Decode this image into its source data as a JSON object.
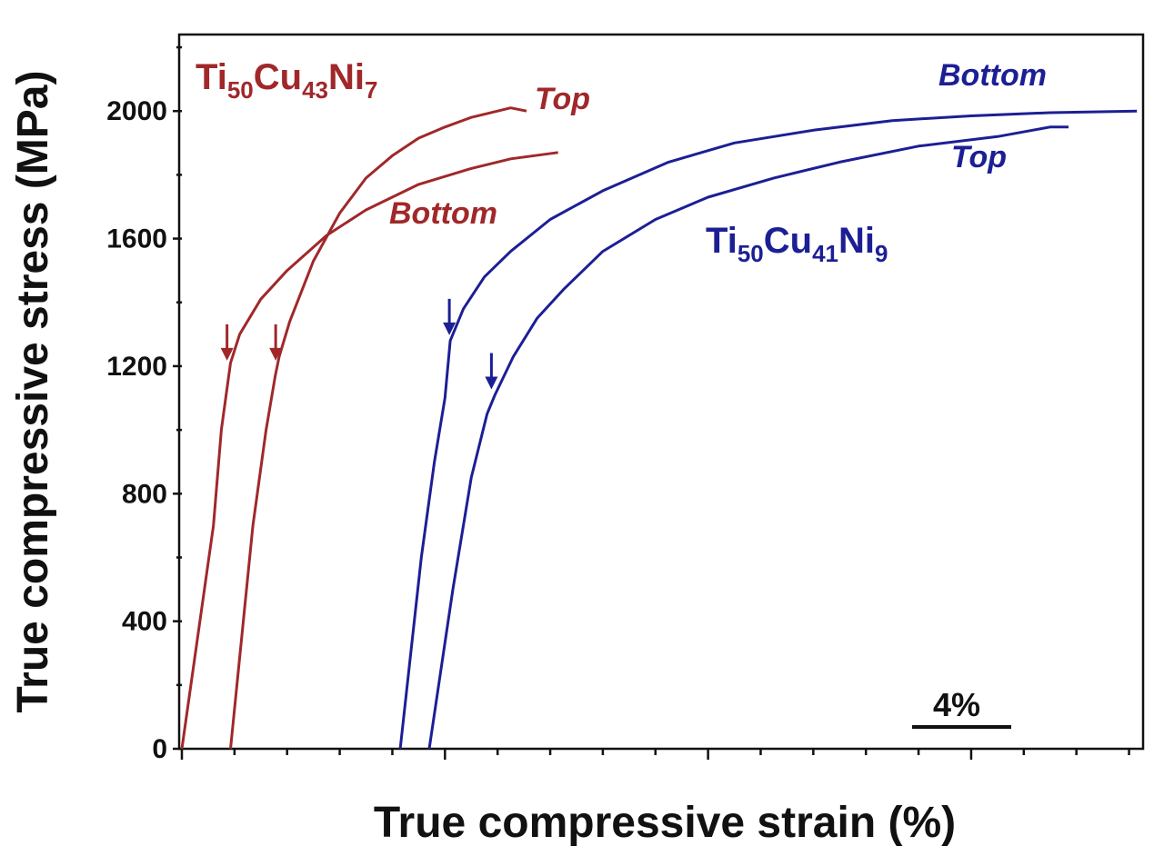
{
  "chart_data": {
    "type": "line",
    "xlabel": "True compressive strain (%)",
    "ylabel": "True compressive stress (MPa)",
    "ylim": [
      0,
      2240
    ],
    "xlim": [
      0,
      36.5
    ],
    "x_ticks_labeled": false,
    "y_ticks": [
      0,
      400,
      800,
      1200,
      1600,
      2000
    ],
    "y_tick_labels": [
      "0",
      "400",
      "800",
      "1200",
      "1600",
      "2000"
    ],
    "grid": false,
    "scale_bar": {
      "label": "4%",
      "value": 4
    },
    "colors": {
      "red": "#a0282a",
      "blue": "#1c1f94",
      "axis": "#111111"
    },
    "groups": [
      {
        "alloy": {
          "base": "Ti",
          "s1": "50",
          "el2": "Cu",
          "s2": "43",
          "el3": "Ni",
          "s3": "7"
        },
        "color": "#a0282a",
        "curves": [
          {
            "name": "Bottom",
            "x": [
              0.0,
              1.2,
              1.5,
              1.75,
              1.85,
              2.2,
              3.0,
              4.0,
              5.5,
              7.0,
              9.0,
              11.0,
              12.5,
              14.3
            ],
            "y": [
              0,
              700,
              1000,
              1150,
              1210,
              1300,
              1410,
              1500,
              1610,
              1690,
              1770,
              1820,
              1850,
              1870
            ]
          },
          {
            "name": "Top",
            "x": [
              1.85,
              2.7,
              3.2,
              3.55,
              3.7,
              4.1,
              5.0,
              6.0,
              7.0,
              8.0,
              9.0,
              10.0,
              11.0,
              12.0,
              12.5,
              13.1
            ],
            "y": [
              0,
              700,
              1000,
              1170,
              1230,
              1340,
              1530,
              1680,
              1790,
              1860,
              1915,
              1950,
              1980,
              2000,
              2010,
              2000
            ]
          }
        ],
        "yield_markers": [
          {
            "x": 1.75,
            "y": 1200
          },
          {
            "x": 3.6,
            "y": 1200
          }
        ]
      },
      {
        "alloy": {
          "base": "Ti",
          "s1": "50",
          "el2": "Cu",
          "s2": "41",
          "el3": "Ni",
          "s3": "9"
        },
        "color": "#1c1f94",
        "curves": [
          {
            "name": "Bottom",
            "x": [
              8.3,
              9.1,
              9.6,
              10.0,
              10.2,
              10.7,
              11.5,
              12.5,
              14.0,
              16.0,
              18.5,
              21.0,
              24.0,
              27.0,
              30.0,
              33.0,
              36.3
            ],
            "y": [
              0,
              600,
              900,
              1100,
              1280,
              1380,
              1480,
              1560,
              1660,
              1750,
              1840,
              1900,
              1940,
              1970,
              1985,
              1995,
              2000
            ]
          },
          {
            "name": "Top",
            "x": [
              9.4,
              10.3,
              11.0,
              11.6,
              11.9,
              12.6,
              13.5,
              14.5,
              16.0,
              18.0,
              20.0,
              22.5,
              25.0,
              28.0,
              31.0,
              33.0,
              33.7
            ],
            "y": [
              0,
              500,
              850,
              1050,
              1110,
              1230,
              1350,
              1440,
              1560,
              1660,
              1730,
              1790,
              1840,
              1890,
              1920,
              1950,
              1950
            ]
          }
        ],
        "yield_markers": [
          {
            "x": 10.2,
            "y": 1280
          },
          {
            "x": 11.8,
            "y": 1110
          }
        ]
      }
    ]
  }
}
